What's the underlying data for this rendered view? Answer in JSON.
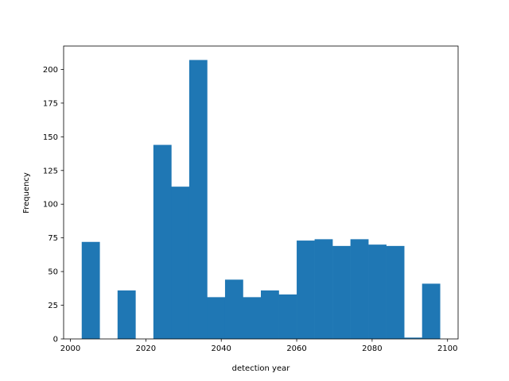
{
  "chart_data": {
    "type": "bar",
    "title": "",
    "xlabel": "detection year",
    "ylabel": "Frequency",
    "xlim": [
      1998.2,
      2102.8
    ],
    "ylim": [
      0,
      217.35
    ],
    "xticks": [
      2000,
      2020,
      2040,
      2060,
      2080,
      2100
    ],
    "yticks": [
      0,
      25,
      50,
      75,
      100,
      125,
      150,
      175,
      200
    ],
    "bar_color": "#1f77b4",
    "grid": false,
    "bins": [
      {
        "start": 2003.0,
        "end": 2007.75,
        "value": 72
      },
      {
        "start": 2007.75,
        "end": 2012.5,
        "value": 0
      },
      {
        "start": 2012.5,
        "end": 2017.25,
        "value": 36
      },
      {
        "start": 2017.25,
        "end": 2022.0,
        "value": 0
      },
      {
        "start": 2022.0,
        "end": 2026.75,
        "value": 144
      },
      {
        "start": 2026.75,
        "end": 2031.5,
        "value": 113
      },
      {
        "start": 2031.5,
        "end": 2036.25,
        "value": 207
      },
      {
        "start": 2036.25,
        "end": 2041.0,
        "value": 31
      },
      {
        "start": 2041.0,
        "end": 2045.75,
        "value": 44
      },
      {
        "start": 2045.75,
        "end": 2050.5,
        "value": 31
      },
      {
        "start": 2050.5,
        "end": 2055.25,
        "value": 36
      },
      {
        "start": 2055.25,
        "end": 2060.0,
        "value": 33
      },
      {
        "start": 2060.0,
        "end": 2064.75,
        "value": 73
      },
      {
        "start": 2064.75,
        "end": 2069.5,
        "value": 74
      },
      {
        "start": 2069.5,
        "end": 2074.25,
        "value": 69
      },
      {
        "start": 2074.25,
        "end": 2079.0,
        "value": 74
      },
      {
        "start": 2079.0,
        "end": 2083.75,
        "value": 70
      },
      {
        "start": 2083.75,
        "end": 2088.5,
        "value": 69
      },
      {
        "start": 2088.5,
        "end": 2093.25,
        "value": 1
      },
      {
        "start": 2093.25,
        "end": 2098.0,
        "value": 41
      }
    ]
  }
}
